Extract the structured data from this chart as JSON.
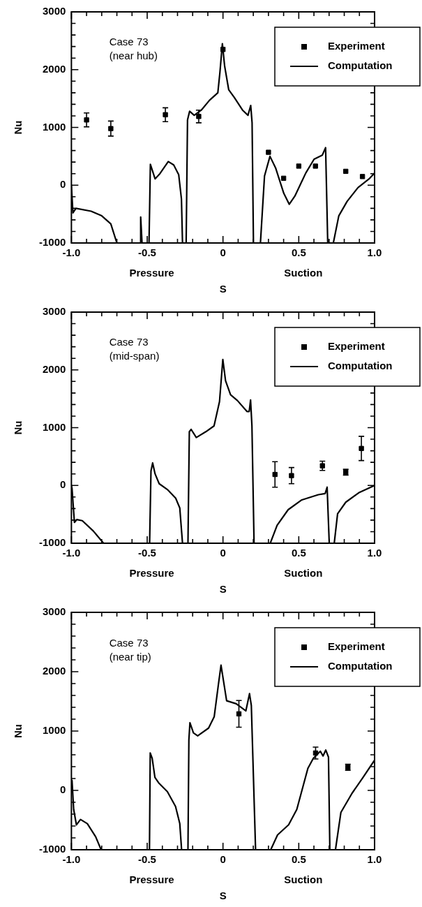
{
  "chart_data": [
    {
      "type": "line",
      "xlabel": "S",
      "ylabel": "Nu",
      "annotations": [
        "Case 73\n(near hub)",
        "Pressure",
        "Suction"
      ],
      "xlim": [
        -1,
        1
      ],
      "ylim": [
        -1000,
        3000
      ],
      "xticks": [
        {
          "value": -1,
          "label": "-1.0"
        },
        {
          "value": -0.9,
          "label": null
        },
        {
          "value": -0.8,
          "label": null
        },
        {
          "value": -0.7,
          "label": null
        },
        {
          "value": -0.6,
          "label": null
        },
        -0.5,
        {
          "value": -0.4,
          "label": null
        },
        {
          "value": -0.3,
          "label": null
        },
        {
          "value": -0.2,
          "label": null
        },
        {
          "value": -0.1,
          "label": null
        },
        0,
        {
          "value": 0.1,
          "label": null
        },
        {
          "value": 0.2,
          "label": null
        },
        {
          "value": 0.3,
          "label": null
        },
        {
          "value": 0.4,
          "label": null
        },
        0.5,
        {
          "value": 0.6,
          "label": null
        },
        {
          "value": 0.7,
          "label": null
        },
        {
          "value": 0.8,
          "label": null
        },
        {
          "value": 0.9,
          "label": null
        },
        {
          "value": 1,
          "label": "1.0"
        }
      ],
      "yticks": [
        -1000,
        {
          "value": -800,
          "label": null
        },
        {
          "value": -600,
          "label": null
        },
        {
          "value": -400,
          "label": null
        },
        {
          "value": -200,
          "label": null
        },
        0,
        {
          "value": 200,
          "label": null
        },
        {
          "value": 400,
          "label": null
        },
        {
          "value": 600,
          "label": null
        },
        {
          "value": 800,
          "label": null
        },
        1000,
        {
          "value": 1200,
          "label": null
        },
        {
          "value": 1400,
          "label": null
        },
        {
          "value": 1600,
          "label": null
        },
        {
          "value": 1800,
          "label": null
        },
        2000,
        {
          "value": 2200,
          "label": null
        },
        {
          "value": 2400,
          "label": null
        },
        {
          "value": 2600,
          "label": null
        },
        {
          "value": 2800,
          "label": null
        },
        3000
      ],
      "grid": false,
      "legend": "top right",
      "series": [
        {
          "name": "Experiment",
          "type": "scatter",
          "color": "#000000",
          "marker": "square",
          "x": [
            -0.9,
            -0.74,
            -0.38,
            -0.16,
            0,
            0.3,
            0.4,
            0.5,
            0.61,
            0.81,
            0.92
          ],
          "values": [
            1130,
            980,
            1220,
            1190,
            2350,
            570,
            120,
            330,
            330,
            240,
            150
          ],
          "errors": [
            120,
            130,
            120,
            110,
            null,
            null,
            null,
            null,
            null,
            null,
            null
          ]
        },
        {
          "name": "Computation",
          "type": "line",
          "color": "#000000",
          "marker": "none",
          "line_style": "solid",
          "x": [
            -1,
            -0.99,
            -0.97,
            -0.87,
            -0.8,
            -0.74,
            -0.7,
            -0.6,
            -0.543,
            -0.543,
            -0.534,
            -0.51,
            -0.488,
            -0.479,
            -0.448,
            -0.416,
            -0.361,
            -0.325,
            -0.292,
            -0.274,
            -0.267,
            -0.255,
            -0.243,
            -0.234,
            -0.22,
            -0.19,
            -0.143,
            -0.089,
            -0.034,
            -0.02,
            -0.004,
            0.011,
            0.038,
            0.074,
            0.129,
            0.165,
            0.183,
            0.192,
            0.201,
            0.22,
            0.247,
            0.274,
            0.31,
            0.347,
            0.401,
            0.437,
            0.474,
            0.546,
            0.601,
            0.655,
            0.677,
            0.691,
            0.71,
            0.728,
            0.764,
            0.819,
            0.891,
            0.964,
            1
          ],
          "values": [
            0,
            -480,
            -400,
            -450,
            -530,
            -670,
            -1000,
            null,
            -1000,
            -550,
            -1000,
            null,
            -1000,
            360,
            110,
            200,
            410,
            350,
            180,
            -240,
            -1000,
            null,
            -1000,
            1130,
            1280,
            1210,
            1300,
            1470,
            1600,
            1960,
            2450,
            2060,
            1650,
            1520,
            1300,
            1210,
            1380,
            1080,
            -1000,
            null,
            -1000,
            160,
            500,
            300,
            -140,
            -330,
            -190,
            210,
            450,
            520,
            650,
            -1000,
            null,
            -1000,
            -530,
            -280,
            -40,
            110,
            210
          ]
        }
      ]
    },
    {
      "type": "line",
      "xlabel": "S",
      "ylabel": "Nu",
      "annotations": [
        "Case 73\n(mid-span)",
        "Pressure",
        "Suction"
      ],
      "xlim": [
        -1,
        1
      ],
      "ylim": [
        -1000,
        3000
      ],
      "xticks": [
        {
          "value": -1,
          "label": "-1.0"
        },
        {
          "value": -0.9,
          "label": null
        },
        {
          "value": -0.8,
          "label": null
        },
        {
          "value": -0.7,
          "label": null
        },
        {
          "value": -0.6,
          "label": null
        },
        -0.5,
        {
          "value": -0.4,
          "label": null
        },
        {
          "value": -0.3,
          "label": null
        },
        {
          "value": -0.2,
          "label": null
        },
        {
          "value": -0.1,
          "label": null
        },
        0,
        {
          "value": 0.1,
          "label": null
        },
        {
          "value": 0.2,
          "label": null
        },
        {
          "value": 0.3,
          "label": null
        },
        {
          "value": 0.4,
          "label": null
        },
        0.5,
        {
          "value": 0.6,
          "label": null
        },
        {
          "value": 0.7,
          "label": null
        },
        {
          "value": 0.8,
          "label": null
        },
        {
          "value": 0.9,
          "label": null
        },
        {
          "value": 1,
          "label": "1.0"
        }
      ],
      "yticks": [
        -1000,
        {
          "value": -800,
          "label": null
        },
        {
          "value": -600,
          "label": null
        },
        {
          "value": -400,
          "label": null
        },
        {
          "value": -200,
          "label": null
        },
        0,
        {
          "value": 200,
          "label": null
        },
        {
          "value": 400,
          "label": null
        },
        {
          "value": 600,
          "label": null
        },
        {
          "value": 800,
          "label": null
        },
        1000,
        {
          "value": 1200,
          "label": null
        },
        {
          "value": 1400,
          "label": null
        },
        {
          "value": 1600,
          "label": null
        },
        {
          "value": 1800,
          "label": null
        },
        2000,
        {
          "value": 2200,
          "label": null
        },
        {
          "value": 2400,
          "label": null
        },
        {
          "value": 2600,
          "label": null
        },
        {
          "value": 2800,
          "label": null
        },
        3000
      ],
      "grid": false,
      "legend": "top right",
      "series": [
        {
          "name": "Experiment",
          "type": "scatter",
          "color": "#000000",
          "marker": "square",
          "x": [
            0.343,
            0.452,
            0.656,
            0.81,
            0.913
          ],
          "values": [
            190,
            170,
            340,
            230,
            640
          ],
          "errors": [
            220,
            140,
            80,
            50,
            210
          ]
        },
        {
          "name": "Computation",
          "type": "line",
          "color": "#000000",
          "marker": "none",
          "line_style": "solid",
          "x": [
            -1,
            -0.996,
            -0.98,
            -0.964,
            -0.928,
            -0.855,
            -0.788,
            -0.6,
            -0.484,
            -0.475,
            -0.464,
            -0.448,
            -0.421,
            -0.367,
            -0.312,
            -0.285,
            -0.267,
            -0.25,
            -0.231,
            -0.222,
            -0.21,
            -0.176,
            -0.113,
            -0.059,
            -0.023,
            -0.001,
            0.017,
            0.05,
            0.095,
            0.158,
            0.173,
            0.182,
            0.191,
            0.205,
            0.26,
            0.312,
            0.357,
            0.43,
            0.52,
            0.629,
            0.674,
            0.687,
            0.701,
            0.72,
            0.734,
            0.756,
            0.81,
            0.9,
            1
          ],
          "values": [
            0,
            -50,
            -640,
            -590,
            -610,
            -790,
            -1000,
            null,
            -1000,
            250,
            390,
            200,
            30,
            -70,
            -220,
            -390,
            -1000,
            null,
            -1000,
            930,
            970,
            830,
            930,
            1030,
            1450,
            2180,
            1810,
            1570,
            1470,
            1280,
            1280,
            1480,
            1030,
            -1000,
            null,
            -1000,
            -690,
            -420,
            -250,
            -160,
            -140,
            -30,
            -1000,
            null,
            -1000,
            -490,
            -290,
            -120,
            0
          ]
        }
      ]
    },
    {
      "type": "line",
      "xlabel": "S",
      "ylabel": "Nu",
      "annotations": [
        "Case 73\n(near tip)",
        "Pressure",
        "Suction"
      ],
      "xlim": [
        -1,
        1
      ],
      "ylim": [
        -1000,
        3000
      ],
      "xticks": [
        {
          "value": -1,
          "label": "-1.0"
        },
        {
          "value": -0.9,
          "label": null
        },
        {
          "value": -0.8,
          "label": null
        },
        {
          "value": -0.7,
          "label": null
        },
        {
          "value": -0.6,
          "label": null
        },
        -0.5,
        {
          "value": -0.4,
          "label": null
        },
        {
          "value": -0.3,
          "label": null
        },
        {
          "value": -0.2,
          "label": null
        },
        {
          "value": -0.1,
          "label": null
        },
        0,
        {
          "value": 0.1,
          "label": null
        },
        {
          "value": 0.2,
          "label": null
        },
        {
          "value": 0.3,
          "label": null
        },
        {
          "value": 0.4,
          "label": null
        },
        0.5,
        {
          "value": 0.6,
          "label": null
        },
        {
          "value": 0.7,
          "label": null
        },
        {
          "value": 0.8,
          "label": null
        },
        {
          "value": 0.9,
          "label": null
        },
        {
          "value": 1,
          "label": "1.0"
        }
      ],
      "yticks": [
        -1000,
        {
          "value": -800,
          "label": null
        },
        {
          "value": -600,
          "label": null
        },
        {
          "value": -400,
          "label": null
        },
        {
          "value": -200,
          "label": null
        },
        0,
        {
          "value": 200,
          "label": null
        },
        {
          "value": 400,
          "label": null
        },
        {
          "value": 600,
          "label": null
        },
        {
          "value": 800,
          "label": null
        },
        1000,
        {
          "value": 1200,
          "label": null
        },
        {
          "value": 1400,
          "label": null
        },
        {
          "value": 1600,
          "label": null
        },
        {
          "value": 1800,
          "label": null
        },
        2000,
        {
          "value": 2200,
          "label": null
        },
        {
          "value": 2400,
          "label": null
        },
        {
          "value": 2600,
          "label": null
        },
        {
          "value": 2800,
          "label": null
        },
        3000
      ],
      "grid": false,
      "legend": "top right",
      "series": [
        {
          "name": "Experiment",
          "type": "scatter",
          "color": "#000000",
          "marker": "square",
          "x": [
            0.105,
            0.611,
            0.824
          ],
          "values": [
            1290,
            630,
            390
          ],
          "errors": [
            225,
            100,
            50
          ]
        },
        {
          "name": "Computation",
          "type": "line",
          "color": "#000000",
          "marker": "none",
          "line_style": "solid",
          "x": [
            -0.996,
            -0.985,
            -0.967,
            -0.94,
            -0.895,
            -0.84,
            -0.804,
            -0.6,
            -0.485,
            -0.48,
            -0.467,
            -0.449,
            -0.422,
            -0.367,
            -0.313,
            -0.285,
            -0.273,
            -0.25,
            -0.231,
            -0.225,
            -0.218,
            -0.195,
            -0.167,
            -0.095,
            -0.058,
            -0.031,
            -0.013,
            0.005,
            0.024,
            0.087,
            0.151,
            0.175,
            0.187,
            0.215,
            0.27,
            0.315,
            0.36,
            0.433,
            0.487,
            0.56,
            0.596,
            0.642,
            0.66,
            0.678,
            0.696,
            0.705,
            0.72,
            0.742,
            0.778,
            0.851,
            0.924,
            1
          ],
          "values": [
            170,
            -320,
            -580,
            -490,
            -560,
            -780,
            -1000,
            null,
            -1000,
            630,
            540,
            220,
            120,
            -20,
            -270,
            -560,
            -1000,
            null,
            -1000,
            850,
            1140,
            970,
            920,
            1050,
            1240,
            1770,
            2110,
            1820,
            1510,
            1460,
            1340,
            1630,
            1430,
            -1000,
            null,
            -1000,
            -750,
            -580,
            -320,
            370,
            540,
            660,
            580,
            680,
            560,
            -1000,
            null,
            -1000,
            -370,
            -50,
            220,
            510
          ]
        }
      ]
    }
  ]
}
